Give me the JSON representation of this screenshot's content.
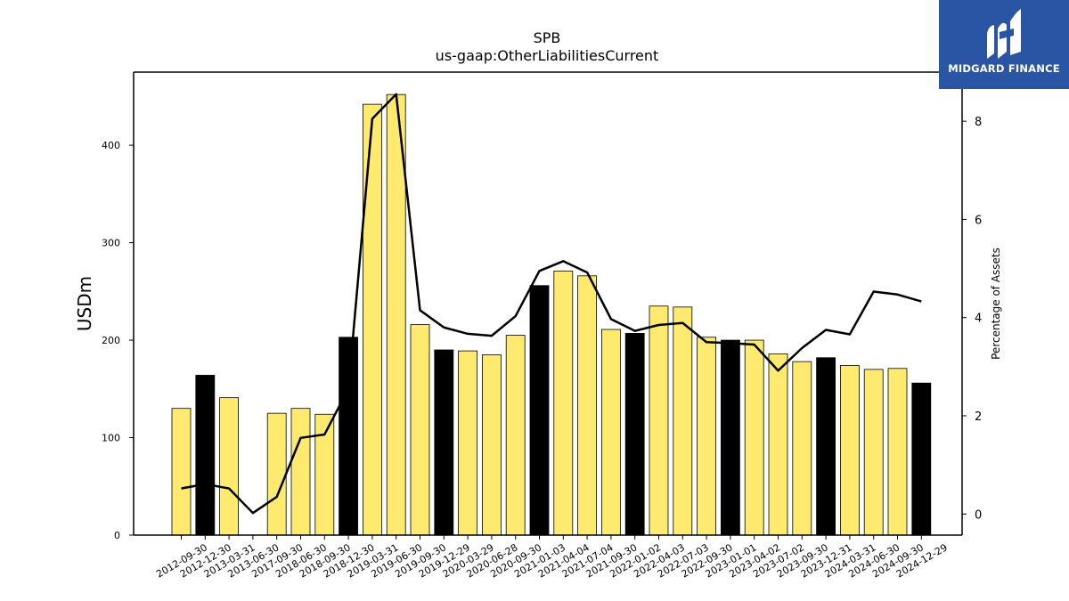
{
  "chart_data": {
    "type": "bar",
    "title": "SPB",
    "subtitle": "us-gaap:OtherLiabilitiesCurrent",
    "ylabel": "USDm",
    "y2label": "Percentage of Assets",
    "ylim": [
      0,
      475
    ],
    "y2lim": [
      -0.43,
      9.0
    ],
    "yticks": [
      0,
      100,
      200,
      300,
      400
    ],
    "y2ticks": [
      0,
      2,
      4,
      6,
      8
    ],
    "categories": [
      "2012-09-30",
      "2012-12-30",
      "2013-03-31",
      "2013-06-30",
      "2017-09-30",
      "2018-06-30",
      "2018-09-30",
      "2018-12-30",
      "2019-03-31",
      "2019-06-30",
      "2019-09-30",
      "2019-12-29",
      "2020-03-29",
      "2020-06-28",
      "2020-09-30",
      "2021-01-03",
      "2021-04-04",
      "2021-07-04",
      "2021-09-30",
      "2022-01-02",
      "2022-04-03",
      "2022-07-03",
      "2022-09-30",
      "2023-01-01",
      "2023-04-02",
      "2023-07-02",
      "2023-09-30",
      "2023-12-31",
      "2024-03-31",
      "2024-06-30",
      "2024-09-30",
      "2024-12-29"
    ],
    "series": [
      {
        "values": [
          130,
          164,
          141,
          0,
          125,
          130,
          124,
          203,
          442,
          452,
          216,
          190,
          189,
          185,
          205,
          256,
          271,
          266,
          211,
          207,
          235,
          234,
          203,
          200,
          200,
          186,
          178,
          182,
          174,
          170,
          171,
          156
        ],
        "highlight": [
          false,
          true,
          false,
          false,
          false,
          false,
          false,
          true,
          false,
          false,
          false,
          true,
          false,
          false,
          false,
          true,
          false,
          false,
          false,
          true,
          false,
          false,
          false,
          true,
          false,
          false,
          false,
          true,
          false,
          false,
          false,
          true
        ],
        "color": "#fdea6f",
        "highlight_color": "#000000"
      },
      {
        "type": "line",
        "axis": "right",
        "values": [
          0.52,
          0.61,
          0.52,
          0.02,
          0.35,
          1.55,
          1.62,
          2.55,
          8.05,
          8.55,
          4.15,
          3.8,
          3.67,
          3.63,
          4.03,
          4.95,
          5.15,
          4.92,
          3.97,
          3.73,
          3.85,
          3.89,
          3.5,
          3.48,
          3.45,
          2.92,
          3.38,
          3.75,
          3.66,
          4.53,
          4.47,
          4.33
        ],
        "color": "#000000"
      }
    ]
  },
  "logo": {
    "text": "MIDGARD FINANCE",
    "color": "#2a55a4"
  }
}
